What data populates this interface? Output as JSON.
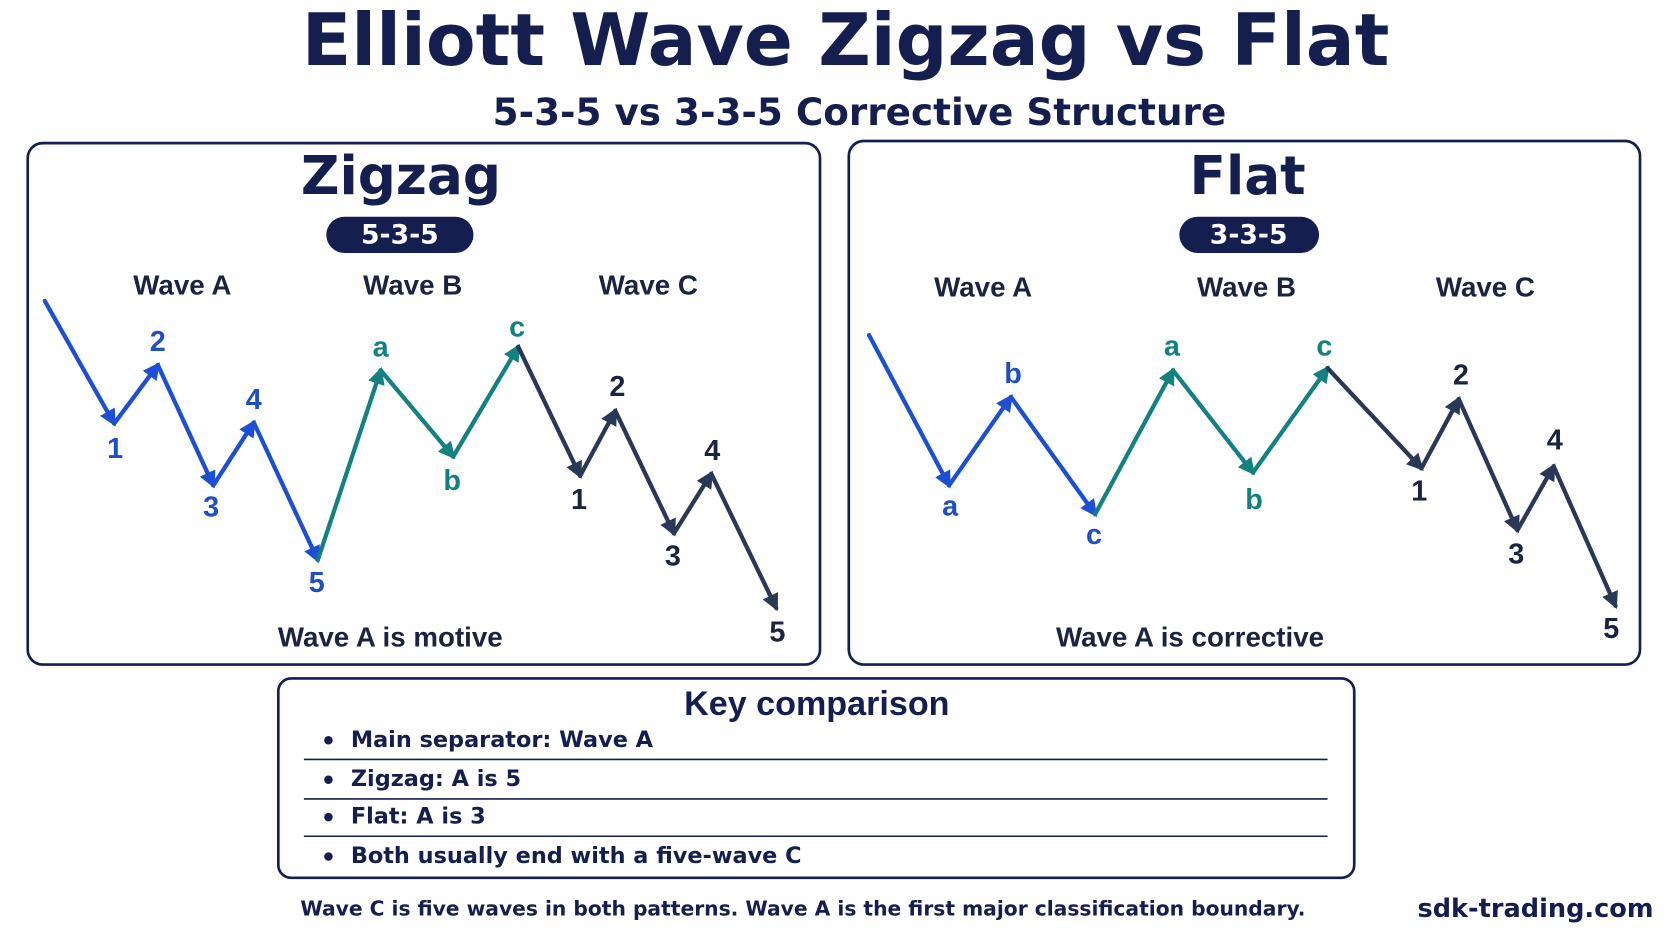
{
  "header": {
    "title": "Elliott Wave Zigzag vs Flat",
    "subtitle": "5-3-5 vs 3-3-5 Corrective Structure"
  },
  "panels": [
    {
      "title": "Zigzag",
      "badge": "5-3-5",
      "wave_headers": [
        "Wave A",
        "Wave B",
        "Wave C"
      ],
      "points": [
        "1",
        "2",
        "3",
        "4",
        "5",
        "a",
        "b",
        "c",
        "1",
        "2",
        "3",
        "4",
        "5"
      ],
      "caption": "Wave A is motive"
    },
    {
      "title": "Flat",
      "badge": "3-3-5",
      "wave_headers": [
        "Wave A",
        "Wave B",
        "Wave C"
      ],
      "points": [
        "a",
        "b",
        "c",
        "a",
        "b",
        "c",
        "1",
        "2",
        "3",
        "4",
        "5"
      ],
      "caption": "Wave A is corrective"
    }
  ],
  "key_comparison": {
    "title": "Key comparison",
    "items": [
      "Main separator: Wave A",
      "Zigzag: A is 5",
      "Flat: A is 3",
      "Both usually end with a five-wave C"
    ]
  },
  "footer": {
    "note": "Wave C is five waves in both patterns. Wave A is the first major classification boundary.",
    "brand": "sdk-trading.com"
  }
}
